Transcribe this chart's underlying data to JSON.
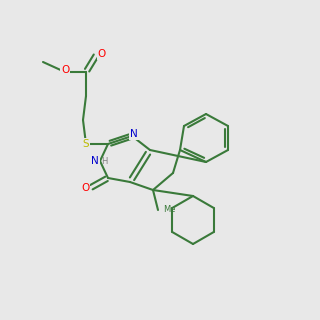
{
  "bg": "#e8e8e8",
  "lc": "#3a7a3a",
  "nc": "#0000cc",
  "oc": "#ff0000",
  "sc": "#bbbb00",
  "lw": 1.5
}
